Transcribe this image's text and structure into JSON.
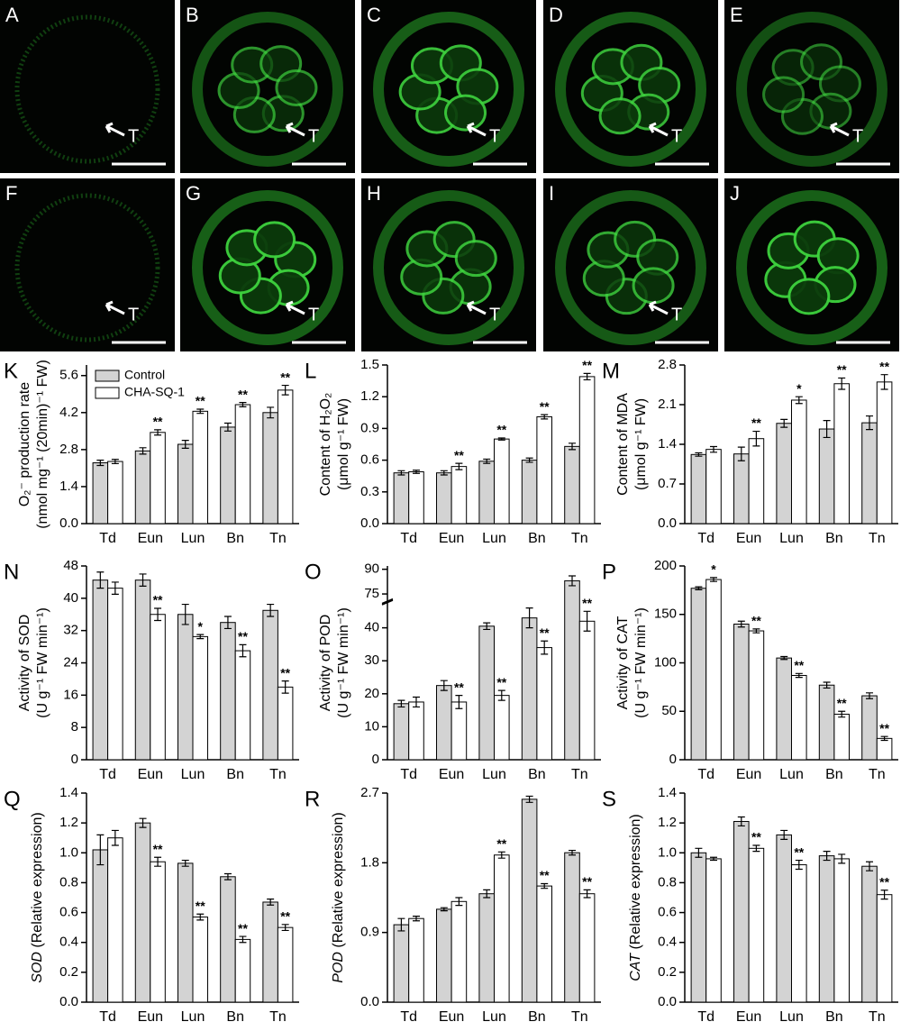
{
  "images": [
    {
      "label": "A",
      "marker": "T"
    },
    {
      "label": "B",
      "marker": "T"
    },
    {
      "label": "C",
      "marker": "T"
    },
    {
      "label": "D",
      "marker": "T"
    },
    {
      "label": "E",
      "marker": "T"
    },
    {
      "label": "F",
      "marker": "T"
    },
    {
      "label": "G",
      "marker": "T"
    },
    {
      "label": "H",
      "marker": "T"
    },
    {
      "label": "I",
      "marker": "T"
    },
    {
      "label": "J"
    }
  ],
  "chart_data": [
    {
      "type": "bar",
      "panel": "K",
      "ylabel": [
        "O₂⁻ production rate",
        "(nmol mg⁻¹ (20min)⁻¹ FW)"
      ],
      "categories": [
        "Td",
        "Eun",
        "Lun",
        "Bn",
        "Tn"
      ],
      "legend": "upper left",
      "series": [
        {
          "name": "Control",
          "color": "#d3d3d3",
          "values": [
            2.3,
            2.75,
            3.0,
            3.65,
            4.2
          ],
          "errors": [
            0.1,
            0.12,
            0.15,
            0.15,
            0.2
          ]
        },
        {
          "name": "CHA-SQ-1",
          "color": "#ffffff",
          "values": [
            2.35,
            3.45,
            4.25,
            4.5,
            5.05
          ],
          "errors": [
            0.08,
            0.1,
            0.08,
            0.08,
            0.18
          ]
        }
      ],
      "significance": [
        null,
        "**",
        "**",
        "**",
        "**"
      ],
      "ylim": [
        0,
        6
      ],
      "yticks": [
        {
          "value": 0,
          "label": "0.0"
        },
        1.4,
        2.8,
        4.2,
        5.6
      ]
    },
    {
      "type": "bar",
      "panel": "L",
      "ylabel": [
        "Content of H₂O₂",
        "(μmol g⁻¹ FW)"
      ],
      "categories": [
        "Td",
        "Eun",
        "Lun",
        "Bn",
        "Tn"
      ],
      "series": [
        {
          "name": "Control",
          "color": "#d3d3d3",
          "values": [
            0.48,
            0.48,
            0.59,
            0.6,
            0.73
          ],
          "errors": [
            0.02,
            0.02,
            0.02,
            0.02,
            0.03
          ]
        },
        {
          "name": "CHA-SQ-1",
          "color": "#ffffff",
          "values": [
            0.49,
            0.54,
            0.8,
            1.01,
            1.39
          ],
          "errors": [
            0.015,
            0.03,
            0.01,
            0.02,
            0.03
          ]
        }
      ],
      "significance": [
        null,
        "**",
        "**",
        "**",
        "**"
      ],
      "ylim": [
        0,
        1.5
      ],
      "yticks": [
        {
          "value": 0,
          "label": "0.0"
        },
        0.3,
        0.6,
        0.9,
        1.2,
        1.5
      ]
    },
    {
      "type": "bar",
      "panel": "M",
      "ylabel": [
        "Content of MDA",
        "(μmol g⁻¹ FW)"
      ],
      "categories": [
        "Td",
        "Eun",
        "Lun",
        "Bn",
        "Tn"
      ],
      "series": [
        {
          "name": "Control",
          "color": "#d3d3d3",
          "values": [
            1.22,
            1.23,
            1.77,
            1.67,
            1.78
          ],
          "errors": [
            0.03,
            0.12,
            0.07,
            0.15,
            0.12
          ]
        },
        {
          "name": "CHA-SQ-1",
          "color": "#ffffff",
          "values": [
            1.31,
            1.5,
            2.18,
            2.47,
            2.5
          ],
          "errors": [
            0.05,
            0.13,
            0.06,
            0.1,
            0.13
          ]
        }
      ],
      "significance": [
        null,
        "**",
        "*",
        "**",
        "**"
      ],
      "ylim": [
        0,
        2.8
      ],
      "yticks": [
        {
          "value": 0,
          "label": "0.0"
        },
        0.7,
        1.4,
        2.1,
        2.8
      ]
    },
    {
      "type": "bar",
      "panel": "N",
      "ylabel": [
        "Activity of SOD",
        "(U g⁻¹ FW min⁻¹)"
      ],
      "categories": [
        "Td",
        "Eun",
        "Lun",
        "Bn",
        "Tn"
      ],
      "series": [
        {
          "name": "Control",
          "color": "#d3d3d3",
          "values": [
            44.5,
            44.5,
            36,
            34,
            37
          ],
          "errors": [
            2,
            1.5,
            2.5,
            1.5,
            1.5
          ]
        },
        {
          "name": "CHA-SQ-1",
          "color": "#ffffff",
          "values": [
            42.5,
            36,
            30.5,
            27,
            18
          ],
          "errors": [
            1.5,
            1.5,
            0.5,
            1.5,
            1.5
          ]
        }
      ],
      "significance": [
        null,
        "**",
        "*",
        "**",
        "**"
      ],
      "ylim": [
        0,
        48
      ],
      "yticks": [
        0,
        8,
        16,
        24,
        32,
        40,
        48
      ]
    },
    {
      "type": "bar",
      "panel": "O",
      "ylabel": [
        "Activity of POD",
        "(U g⁻¹ FW min⁻¹)"
      ],
      "categories": [
        "Td",
        "Eun",
        "Lun",
        "Bn",
        "Tn"
      ],
      "series": [
        {
          "name": "Control",
          "color": "#d3d3d3",
          "values": [
            17,
            22.5,
            40.5,
            43,
            83
          ],
          "errors": [
            1,
            1.5,
            1,
            3,
            3
          ]
        },
        {
          "name": "CHA-SQ-1",
          "color": "#ffffff",
          "values": [
            17.5,
            17.5,
            19.5,
            34,
            42
          ],
          "errors": [
            1.5,
            2,
            1.5,
            2,
            3
          ]
        }
      ],
      "significance": [
        null,
        "**",
        "**",
        "**",
        "**"
      ],
      "ylim": [
        0,
        92
      ],
      "ybreak": [
        47,
        72
      ],
      "yticks": [
        0,
        10,
        20,
        30,
        40,
        75,
        90
      ]
    },
    {
      "type": "bar",
      "panel": "P",
      "ylabel": [
        "Activity of CAT",
        "(U g⁻¹ FW min⁻¹)"
      ],
      "categories": [
        "Td",
        "Eun",
        "Lun",
        "Bn",
        "Tn"
      ],
      "series": [
        {
          "name": "Control",
          "color": "#d3d3d3",
          "values": [
            177,
            140,
            105,
            77,
            66
          ],
          "errors": [
            1.5,
            3,
            1.5,
            3,
            3
          ]
        },
        {
          "name": "CHA-SQ-1",
          "color": "#ffffff",
          "values": [
            186,
            133,
            87,
            47,
            22
          ],
          "errors": [
            2,
            2,
            2,
            3,
            2
          ]
        }
      ],
      "significance": [
        "*",
        "**",
        "**",
        "**",
        "**"
      ],
      "ylim": [
        0,
        200
      ],
      "yticks": [
        0,
        50,
        100,
        150,
        200
      ]
    },
    {
      "type": "bar",
      "panel": "Q",
      "ylabel_italic": "SOD",
      "ylabel": [
        "(Relative expression)"
      ],
      "categories": [
        "Td",
        "Eun",
        "Lun",
        "Bn",
        "Tn"
      ],
      "series": [
        {
          "name": "Control",
          "color": "#d3d3d3",
          "values": [
            1.02,
            1.2,
            0.93,
            0.84,
            0.67
          ],
          "errors": [
            0.1,
            0.03,
            0.02,
            0.02,
            0.02
          ]
        },
        {
          "name": "CHA-SQ-1",
          "color": "#ffffff",
          "values": [
            1.1,
            0.94,
            0.57,
            0.42,
            0.5
          ],
          "errors": [
            0.05,
            0.03,
            0.02,
            0.02,
            0.02
          ]
        }
      ],
      "significance": [
        null,
        "**",
        "**",
        "**",
        "**"
      ],
      "ylim": [
        0,
        1.4
      ],
      "yticks": [
        {
          "value": 0,
          "label": "0.0"
        },
        0.2,
        0.4,
        0.6,
        0.8,
        {
          "value": 1,
          "label": "1.0"
        },
        1.2,
        1.4
      ]
    },
    {
      "type": "bar",
      "panel": "R",
      "ylabel_italic": "POD",
      "ylabel": [
        "(Relative expression)"
      ],
      "categories": [
        "Td",
        "Eun",
        "Lun",
        "Bn",
        "Tn"
      ],
      "series": [
        {
          "name": "Control",
          "color": "#d3d3d3",
          "values": [
            1.0,
            1.2,
            1.4,
            2.62,
            1.93
          ],
          "errors": [
            0.08,
            0.02,
            0.05,
            0.04,
            0.03
          ]
        },
        {
          "name": "CHA-SQ-1",
          "color": "#ffffff",
          "values": [
            1.08,
            1.3,
            1.9,
            1.5,
            1.4
          ],
          "errors": [
            0.03,
            0.05,
            0.04,
            0.03,
            0.05
          ]
        }
      ],
      "significance": [
        null,
        null,
        "**",
        "**",
        "**"
      ],
      "ylim": [
        0,
        2.7
      ],
      "yticks": [
        {
          "value": 0,
          "label": "0.0"
        },
        0.9,
        1.8,
        2.7
      ]
    },
    {
      "type": "bar",
      "panel": "S",
      "ylabel_italic": "CAT",
      "ylabel": [
        "(Relative expression)"
      ],
      "categories": [
        "Td",
        "Eun",
        "Lun",
        "Bn",
        "Tn"
      ],
      "series": [
        {
          "name": "Control",
          "color": "#d3d3d3",
          "values": [
            1.0,
            1.21,
            1.12,
            0.98,
            0.91
          ],
          "errors": [
            0.03,
            0.03,
            0.03,
            0.03,
            0.03
          ]
        },
        {
          "name": "CHA-SQ-1",
          "color": "#ffffff",
          "values": [
            0.96,
            1.03,
            0.92,
            0.96,
            0.72
          ],
          "errors": [
            0.01,
            0.02,
            0.03,
            0.03,
            0.03
          ]
        }
      ],
      "significance": [
        null,
        "**",
        "**",
        null,
        "**"
      ],
      "ylim": [
        0,
        1.4
      ],
      "yticks": [
        {
          "value": 0,
          "label": "0.0"
        },
        0.2,
        0.4,
        0.6,
        0.8,
        {
          "value": 1,
          "label": "1.0"
        },
        1.2,
        1.4
      ]
    }
  ]
}
